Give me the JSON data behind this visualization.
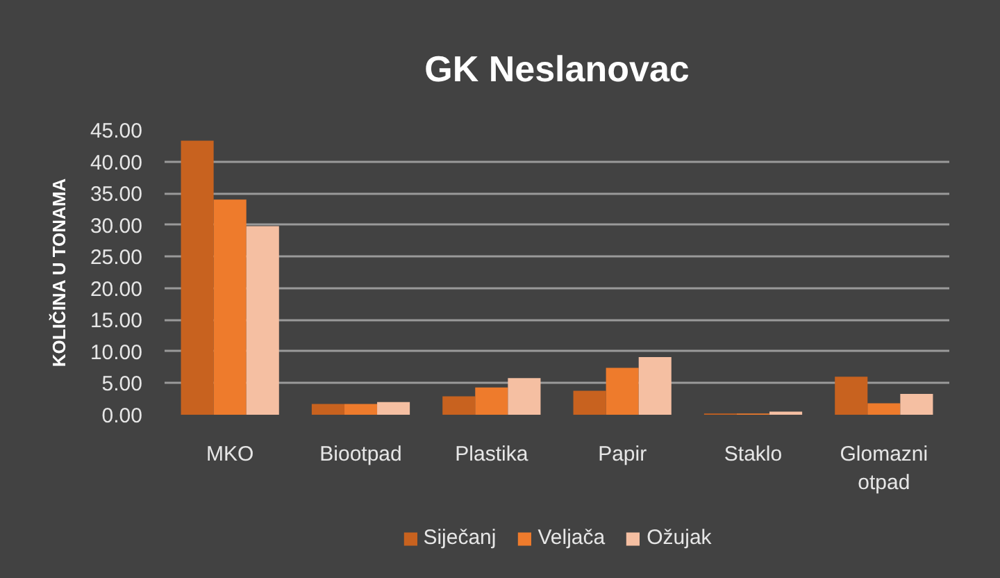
{
  "chart_data": {
    "type": "bar",
    "title": "GK Neslanovac",
    "ylabel": "KOLIČINA U TONAMA",
    "categories": [
      "MKO",
      "Biootpad",
      "Plastika",
      "Papir",
      "Staklo",
      "Glomazni otpad"
    ],
    "series": [
      {
        "name": "Siječanj",
        "color": "#c8621f",
        "values": [
          43.3,
          1.7,
          2.9,
          3.8,
          0.2,
          6.0
        ]
      },
      {
        "name": "Veljača",
        "color": "#ee7b2c",
        "values": [
          34.0,
          1.7,
          4.3,
          7.4,
          0.2,
          1.8
        ]
      },
      {
        "name": "Ožujak",
        "color": "#f5bfa2",
        "values": [
          29.8,
          2.0,
          5.8,
          9.1,
          0.5,
          3.3
        ]
      }
    ],
    "ylim": [
      0,
      45
    ],
    "yticks": [
      {
        "value": 0,
        "label": "0.00"
      },
      {
        "value": 5,
        "label": "5.00"
      },
      {
        "value": 10,
        "label": "10.00"
      },
      {
        "value": 15,
        "label": "15.00"
      },
      {
        "value": 20,
        "label": "20.00"
      },
      {
        "value": 25,
        "label": "25.00"
      },
      {
        "value": 30,
        "label": "30.00"
      },
      {
        "value": 35,
        "label": "35.00"
      },
      {
        "value": 40,
        "label": "40.00"
      },
      {
        "value": 45,
        "label": "45.00"
      }
    ],
    "grid": "y",
    "legend": "bottom"
  }
}
